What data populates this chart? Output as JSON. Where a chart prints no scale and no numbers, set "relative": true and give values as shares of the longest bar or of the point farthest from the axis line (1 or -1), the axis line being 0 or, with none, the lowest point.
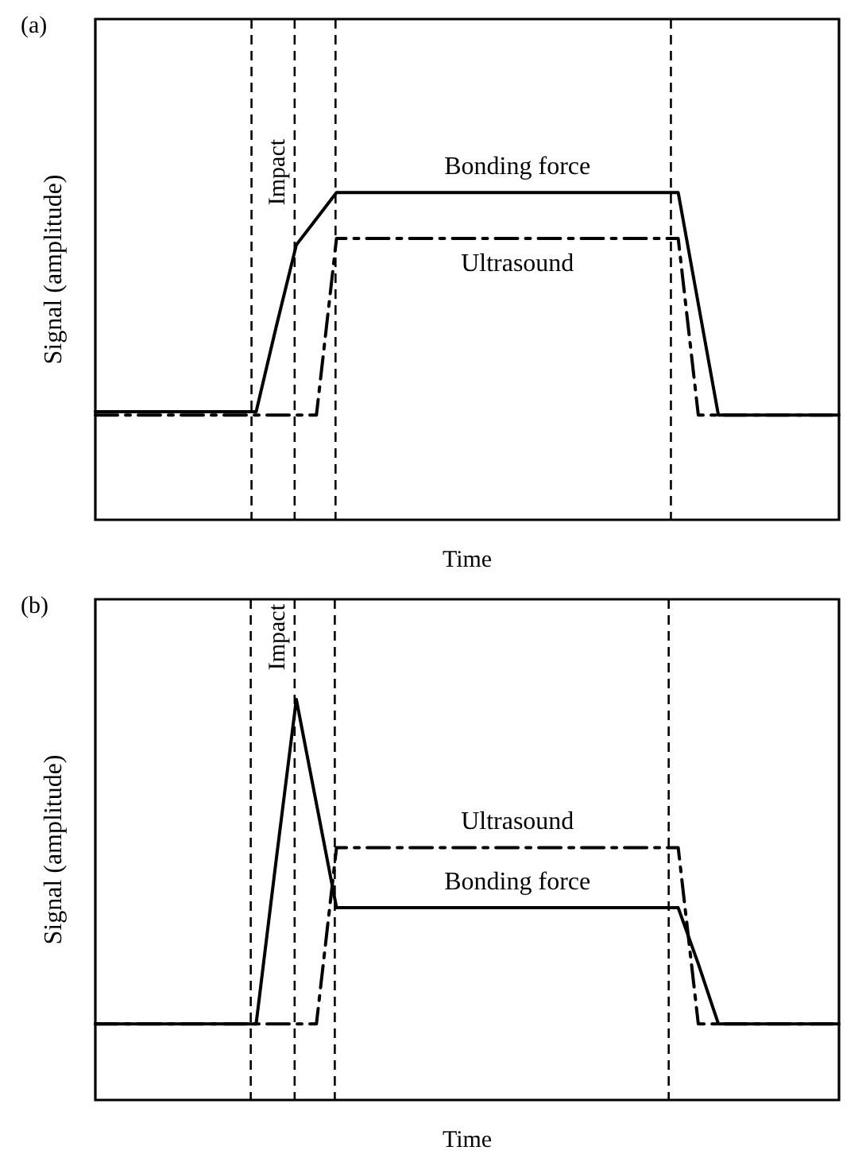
{
  "chart_data": [
    {
      "type": "line",
      "title": "(a)",
      "xlabel": "Time",
      "ylabel": "Signal (amplitude)",
      "relative": true,
      "tick_labels": false,
      "grid": false,
      "legend": false,
      "marker": "none",
      "categories": [
        null,
        null,
        null,
        null,
        null,
        null,
        null,
        null,
        null,
        null,
        null,
        null,
        null,
        null,
        null,
        null,
        null,
        null,
        null,
        null,
        null,
        null,
        null,
        null,
        null,
        null,
        null,
        null,
        null,
        null,
        null,
        null,
        null,
        null,
        null,
        null,
        null,
        null
      ],
      "series": [
        {
          "name": "Bonding force",
          "color": "#000000",
          "line_style": "solid",
          "values": [
            0.33,
            0.33,
            0.33,
            0.33,
            0.33,
            0.33,
            0.33,
            0.33,
            0.33,
            0.59,
            0.84,
            0.92,
            1,
            1,
            1,
            1,
            1,
            1,
            1,
            1,
            1,
            1,
            1,
            1,
            1,
            1,
            1,
            1,
            1,
            1,
            0.66,
            0.32,
            0.32,
            0.32,
            0.32,
            0.32,
            0.32,
            0.32
          ]
        },
        {
          "name": "Ultrasound",
          "color": "#000000",
          "line_style": "dashed",
          "values": [
            0.32,
            0.32,
            0.32,
            0.32,
            0.32,
            0.32,
            0.32,
            0.32,
            0.32,
            0.32,
            0.32,
            0.32,
            0.86,
            0.86,
            0.86,
            0.86,
            0.86,
            0.86,
            0.86,
            0.86,
            0.86,
            0.86,
            0.86,
            0.86,
            0.86,
            0.86,
            0.86,
            0.86,
            0.86,
            0.86,
            0.32,
            0.32,
            0.32,
            0.32,
            0.32,
            0.32,
            0.32,
            0.32
          ]
        }
      ],
      "annotations": [
        "Impact"
      ]
    },
    {
      "type": "line",
      "title": "(b)",
      "xlabel": "Time",
      "ylabel": "Signal (amplitude)",
      "relative": true,
      "tick_labels": false,
      "grid": false,
      "legend": false,
      "marker": "none",
      "categories": [
        null,
        null,
        null,
        null,
        null,
        null,
        null,
        null,
        null,
        null,
        null,
        null,
        null,
        null,
        null,
        null,
        null,
        null,
        null,
        null,
        null,
        null,
        null,
        null,
        null,
        null,
        null,
        null,
        null,
        null,
        null,
        null,
        null,
        null,
        null,
        null,
        null,
        null
      ],
      "series": [
        {
          "name": "Bonding force",
          "color": "#000000",
          "line_style": "solid",
          "values": [
            0.19,
            0.19,
            0.19,
            0.19,
            0.19,
            0.19,
            0.19,
            0.19,
            0.19,
            0.6,
            1,
            0.74,
            0.48,
            0.48,
            0.48,
            0.48,
            0.48,
            0.48,
            0.48,
            0.48,
            0.48,
            0.48,
            0.48,
            0.48,
            0.48,
            0.48,
            0.48,
            0.48,
            0.48,
            0.48,
            0.34,
            0.19,
            0.19,
            0.19,
            0.19,
            0.19,
            0.19,
            0.19
          ]
        },
        {
          "name": "Ultrasound",
          "color": "#000000",
          "line_style": "dashed",
          "values": [
            0.19,
            0.19,
            0.19,
            0.19,
            0.19,
            0.19,
            0.19,
            0.19,
            0.19,
            0.19,
            0.19,
            0.19,
            0.63,
            0.63,
            0.63,
            0.63,
            0.63,
            0.63,
            0.63,
            0.63,
            0.63,
            0.63,
            0.63,
            0.63,
            0.63,
            0.63,
            0.63,
            0.63,
            0.63,
            0.63,
            0.19,
            0.19,
            0.19,
            0.19,
            0.19,
            0.19,
            0.19,
            0.19
          ]
        }
      ],
      "annotations": [
        "Impact"
      ]
    }
  ]
}
